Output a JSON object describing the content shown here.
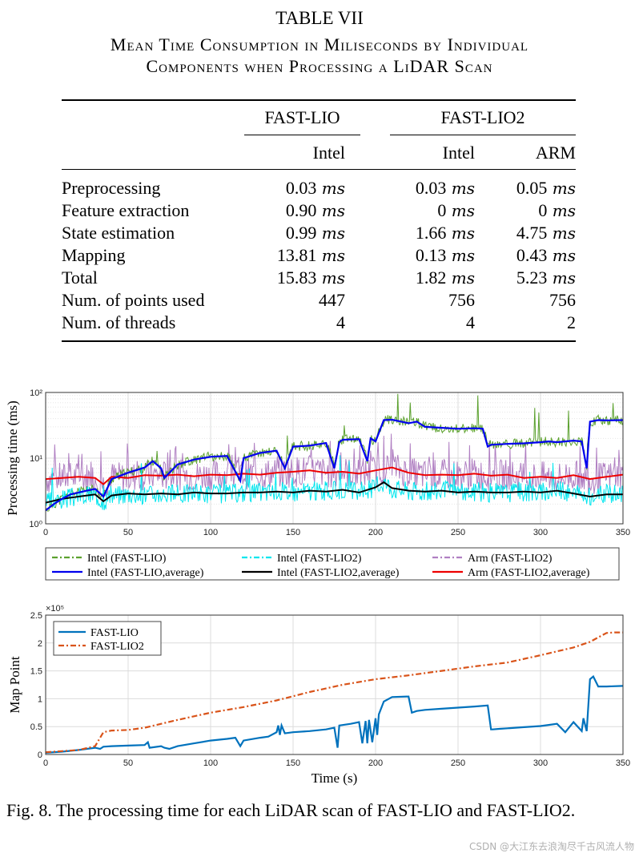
{
  "table": {
    "number": "TABLE VII",
    "caption_line1": "Mean Time Consumption in Miliseconds by Individual",
    "caption_line2": "Components when Processing a LiDAR Scan",
    "groups": [
      "FAST-LIO",
      "FAST-LIO2"
    ],
    "platforms": [
      "Intel",
      "Intel",
      "ARM"
    ],
    "unit": "ms",
    "rows": [
      {
        "label": "Preprocessing",
        "cells": [
          {
            "v": "0.03",
            "u": true
          },
          {
            "v": "0.03",
            "u": true
          },
          {
            "v": "0.05",
            "u": true
          }
        ]
      },
      {
        "label": "Feature extraction",
        "cells": [
          {
            "v": "0.90",
            "u": true
          },
          {
            "v": "0",
            "u": true
          },
          {
            "v": "0",
            "u": true
          }
        ]
      },
      {
        "label": "State estimation",
        "cells": [
          {
            "v": "0.99",
            "u": true
          },
          {
            "v": "1.66",
            "u": true
          },
          {
            "v": "4.75",
            "u": true
          }
        ]
      },
      {
        "label": "Mapping",
        "cells": [
          {
            "v": "13.81",
            "u": true
          },
          {
            "v": "0.13",
            "u": true
          },
          {
            "v": "0.43",
            "u": true
          }
        ]
      },
      {
        "label": "Total",
        "cells": [
          {
            "v": "15.83",
            "u": true
          },
          {
            "v": "1.82",
            "u": true
          },
          {
            "v": "5.23",
            "u": true
          }
        ]
      },
      {
        "label": "Num. of points used",
        "cells": [
          {
            "v": "447",
            "u": false
          },
          {
            "v": "756",
            "u": false
          },
          {
            "v": "756",
            "u": false
          }
        ]
      },
      {
        "label": "Num. of threads",
        "cells": [
          {
            "v": "4",
            "u": false
          },
          {
            "v": "4",
            "u": false
          },
          {
            "v": "2",
            "u": false
          }
        ]
      }
    ]
  },
  "chart_data": [
    {
      "type": "line",
      "ylabel": "Processing time (ms)",
      "yscale": "log",
      "xlim": [
        0,
        350
      ],
      "ylim": [
        1,
        100
      ],
      "xticks": [
        0,
        50,
        100,
        150,
        200,
        250,
        300,
        350
      ],
      "yticks": [
        {
          "label": "10⁰",
          "value": 1
        },
        {
          "label": "10¹",
          "value": 10
        },
        {
          "label": "10²",
          "value": 100
        }
      ],
      "grid": true,
      "legend_position": "below",
      "legend": [
        {
          "label": "Intel (FAST-LIO)",
          "color": "#5ba12e",
          "style": "dashdot"
        },
        {
          "label": "Intel (FAST-LIO2)",
          "color": "#00e6ee",
          "style": "dashdot"
        },
        {
          "label": "Arm (FAST-LIO2)",
          "color": "#b07fc2",
          "style": "dashdot"
        },
        {
          "label": "Intel (FAST-LIO,average)",
          "color": "#0000ee",
          "style": "solid"
        },
        {
          "label": "Intel (FAST-LIO2,average)",
          "color": "#000000",
          "style": "solid"
        },
        {
          "label": "Arm (FAST-LIO2,average)",
          "color": "#ee0000",
          "style": "solid"
        }
      ],
      "series": [
        {
          "name": "Intel (FAST-LIO,average)",
          "color": "#0000ee",
          "x": [
            0,
            5,
            10,
            15,
            20,
            25,
            30,
            35,
            40,
            50,
            60,
            65,
            70,
            72,
            80,
            90,
            100,
            110,
            118,
            120,
            130,
            140,
            145,
            150,
            160,
            170,
            175,
            178,
            180,
            190,
            195,
            197,
            200,
            205,
            210,
            220,
            225,
            230,
            240,
            250,
            260,
            265,
            268,
            270,
            280,
            290,
            300,
            305,
            310,
            320,
            325,
            328,
            330,
            335,
            340,
            350
          ],
          "y": [
            1.6,
            2.0,
            2.4,
            2.8,
            3.0,
            3.2,
            3.4,
            2.6,
            4.8,
            6.0,
            7.2,
            9.0,
            7.0,
            5.0,
            8.0,
            9.5,
            10.5,
            10.8,
            4.5,
            10.0,
            12.0,
            13.0,
            7.0,
            15.0,
            15.5,
            17.0,
            7.0,
            17.5,
            19.0,
            19.5,
            9.0,
            20.0,
            18.0,
            38.0,
            38.5,
            34.0,
            36.0,
            30.0,
            29.0,
            28.0,
            28.5,
            28.0,
            15.0,
            16.0,
            16.5,
            16.8,
            17.5,
            18.0,
            17.5,
            18.5,
            18.0,
            7.0,
            36.0,
            38.0,
            37.5,
            38.0
          ]
        },
        {
          "name": "Arm (FAST-LIO2,average)",
          "color": "#ee0000",
          "x": [
            0,
            10,
            20,
            30,
            35,
            40,
            50,
            60,
            70,
            80,
            90,
            100,
            110,
            120,
            130,
            140,
            150,
            160,
            170,
            180,
            190,
            200,
            210,
            220,
            230,
            240,
            250,
            260,
            270,
            280,
            290,
            300,
            310,
            320,
            330,
            340,
            350
          ],
          "y": [
            4.8,
            5.0,
            5.2,
            5.0,
            4.0,
            5.2,
            5.0,
            5.5,
            5.4,
            5.6,
            5.3,
            5.6,
            5.5,
            5.8,
            5.6,
            6.0,
            6.2,
            6.5,
            6.0,
            6.2,
            5.8,
            6.5,
            7.2,
            6.0,
            5.5,
            5.6,
            5.5,
            5.8,
            5.4,
            5.6,
            5.0,
            5.2,
            5.0,
            5.5,
            4.8,
            5.2,
            5.6
          ]
        },
        {
          "name": "Intel (FAST-LIO2,average)",
          "color": "#000000",
          "x": [
            0,
            10,
            20,
            30,
            35,
            40,
            50,
            60,
            70,
            80,
            90,
            100,
            110,
            120,
            130,
            140,
            150,
            160,
            170,
            180,
            190,
            200,
            205,
            210,
            220,
            230,
            240,
            250,
            260,
            270,
            280,
            290,
            300,
            310,
            320,
            330,
            340,
            350
          ],
          "y": [
            2.1,
            2.4,
            2.6,
            2.8,
            2.2,
            2.7,
            2.9,
            2.8,
            2.9,
            2.8,
            3.0,
            2.9,
            2.9,
            3.0,
            3.0,
            3.1,
            3.0,
            3.2,
            3.1,
            3.3,
            3.0,
            3.6,
            4.3,
            3.5,
            3.2,
            3.1,
            3.2,
            3.0,
            3.1,
            3.0,
            3.0,
            3.1,
            3.0,
            3.2,
            2.9,
            2.6,
            2.8,
            2.8
          ]
        },
        {
          "name": "Intel (FAST-LIO)",
          "color": "#5ba12e",
          "note": "raw per-scan, follows average with spikes up to ~80 ms near t=220"
        },
        {
          "name": "Intel (FAST-LIO2)",
          "color": "#00e6ee",
          "note": "raw per-scan, band ~2-5 ms"
        },
        {
          "name": "Arm (FAST-LIO2)",
          "color": "#b07fc2",
          "note": "raw per-scan, band ~3-20 ms"
        }
      ]
    },
    {
      "type": "line",
      "ylabel": "Map Point",
      "xlabel": "Time (s)",
      "multiplier": "×10⁵",
      "xlim": [
        0,
        350
      ],
      "ylim": [
        0,
        2.5
      ],
      "xticks": [
        0,
        50,
        100,
        150,
        200,
        250,
        300,
        350
      ],
      "yticks": [
        0,
        0.5,
        1,
        1.5,
        2,
        2.5
      ],
      "grid": true,
      "legend_position": "top-left",
      "series": [
        {
          "name": "FAST-LIO",
          "color": "#0072bd",
          "style": "solid",
          "x": [
            0,
            10,
            20,
            30,
            33,
            35,
            40,
            50,
            60,
            62,
            63,
            70,
            72,
            75,
            80,
            90,
            100,
            110,
            115,
            118,
            120,
            130,
            135,
            140,
            141,
            142,
            143,
            145,
            150,
            160,
            170,
            175,
            177,
            178,
            185,
            190,
            192,
            194,
            195,
            196,
            198,
            200,
            201,
            202,
            205,
            210,
            220,
            222,
            225,
            230,
            240,
            250,
            260,
            268,
            270,
            271,
            275,
            280,
            290,
            300,
            305,
            310,
            315,
            320,
            325,
            326,
            328,
            330,
            332,
            335,
            340,
            350
          ],
          "y": [
            0.03,
            0.05,
            0.08,
            0.12,
            0.1,
            0.14,
            0.15,
            0.16,
            0.17,
            0.22,
            0.12,
            0.15,
            0.12,
            0.1,
            0.15,
            0.2,
            0.25,
            0.28,
            0.3,
            0.15,
            0.25,
            0.3,
            0.32,
            0.4,
            0.52,
            0.35,
            0.52,
            0.38,
            0.4,
            0.42,
            0.45,
            0.48,
            0.12,
            0.52,
            0.55,
            0.58,
            0.2,
            0.6,
            0.2,
            0.62,
            0.22,
            0.65,
            0.35,
            0.72,
            0.95,
            1.03,
            1.04,
            0.75,
            0.78,
            0.8,
            0.82,
            0.84,
            0.86,
            0.88,
            0.45,
            0.45,
            0.46,
            0.47,
            0.49,
            0.51,
            0.53,
            0.55,
            0.4,
            0.58,
            0.42,
            0.65,
            0.42,
            1.35,
            1.4,
            1.22,
            1.22,
            1.23
          ]
        },
        {
          "name": "FAST-LIO2",
          "color": "#d95319",
          "style": "dashdot",
          "x": [
            0,
            10,
            20,
            30,
            35,
            40,
            50,
            60,
            80,
            100,
            120,
            140,
            160,
            180,
            200,
            220,
            240,
            260,
            280,
            300,
            320,
            330,
            335,
            340,
            345,
            350
          ],
          "y": [
            0.04,
            0.06,
            0.08,
            0.15,
            0.4,
            0.43,
            0.44,
            0.48,
            0.62,
            0.75,
            0.85,
            0.97,
            1.12,
            1.25,
            1.35,
            1.42,
            1.5,
            1.58,
            1.65,
            1.78,
            1.92,
            2.02,
            2.1,
            2.18,
            2.19,
            2.19
          ]
        }
      ]
    }
  ],
  "figure_caption": "Fig. 8.  The processing time for each LiDAR scan of FAST-LIO and FAST-LIO2.",
  "watermark": "CSDN @大江东去浪淘尽千古风流人物"
}
